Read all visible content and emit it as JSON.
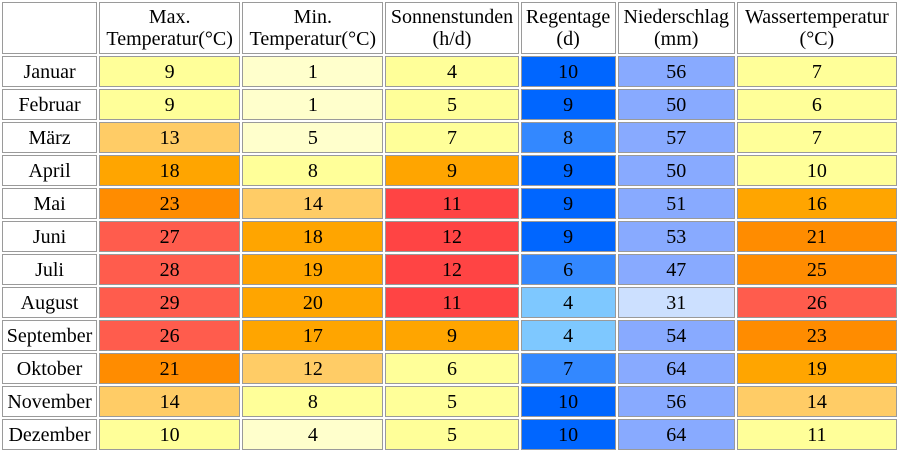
{
  "headers": [
    {
      "line1": "",
      "line2": ""
    },
    {
      "line1": "Max.",
      "line2": "Temperatur(°C)"
    },
    {
      "line1": "Min.",
      "line2": "Temperatur(°C)"
    },
    {
      "line1": "Sonnenstunden",
      "line2": "(h/d)"
    },
    {
      "line1": "Regentage",
      "line2": "(d)"
    },
    {
      "line1": "Niederschlag",
      "line2": "(mm)"
    },
    {
      "line1": "Wassertemperatur",
      "line2": "(°C)"
    }
  ],
  "rows": [
    {
      "month": "Januar",
      "values": [
        9,
        1,
        4,
        10,
        56,
        7
      ]
    },
    {
      "month": "Februar",
      "values": [
        9,
        1,
        5,
        9,
        50,
        6
      ]
    },
    {
      "month": "März",
      "values": [
        13,
        5,
        7,
        8,
        57,
        7
      ]
    },
    {
      "month": "April",
      "values": [
        18,
        8,
        9,
        9,
        50,
        10
      ]
    },
    {
      "month": "Mai",
      "values": [
        23,
        14,
        11,
        9,
        51,
        16
      ]
    },
    {
      "month": "Juni",
      "values": [
        27,
        18,
        12,
        9,
        53,
        21
      ]
    },
    {
      "month": "Juli",
      "values": [
        28,
        19,
        12,
        6,
        47,
        25
      ]
    },
    {
      "month": "August",
      "values": [
        29,
        20,
        11,
        4,
        31,
        26
      ]
    },
    {
      "month": "September",
      "values": [
        26,
        17,
        9,
        4,
        54,
        23
      ]
    },
    {
      "month": "Oktober",
      "values": [
        21,
        12,
        6,
        7,
        64,
        19
      ]
    },
    {
      "month": "November",
      "values": [
        14,
        8,
        5,
        10,
        56,
        14
      ]
    },
    {
      "month": "Dezember",
      "values": [
        10,
        4,
        5,
        10,
        64,
        11
      ]
    }
  ],
  "cell_colors": [
    [
      "#ffff99",
      "#ffffcc",
      "#ffff99",
      "#0066ff",
      "#88aaff",
      "#ffff99"
    ],
    [
      "#ffff99",
      "#ffffcc",
      "#ffff99",
      "#0066ff",
      "#88aaff",
      "#ffff99"
    ],
    [
      "#ffcc66",
      "#ffffcc",
      "#ffff99",
      "#3388ff",
      "#88aaff",
      "#ffff99"
    ],
    [
      "#ffa500",
      "#ffff99",
      "#ffa500",
      "#0066ff",
      "#88aaff",
      "#ffff99"
    ],
    [
      "#ff8c00",
      "#ffcc66",
      "#ff4444",
      "#0066ff",
      "#88aaff",
      "#ffa500"
    ],
    [
      "#ff5c4d",
      "#ffa500",
      "#ff4444",
      "#0066ff",
      "#88aaff",
      "#ff8c00"
    ],
    [
      "#ff5c4d",
      "#ffa500",
      "#ff4444",
      "#3388ff",
      "#88aaff",
      "#ff8c00"
    ],
    [
      "#ff5c4d",
      "#ffa500",
      "#ff4444",
      "#7ec8ff",
      "#cce0ff",
      "#ff5c4d"
    ],
    [
      "#ff5c4d",
      "#ffa500",
      "#ffa500",
      "#7ec8ff",
      "#88aaff",
      "#ff8c00"
    ],
    [
      "#ff8c00",
      "#ffcc66",
      "#ffff99",
      "#3388ff",
      "#88aaff",
      "#ffa500"
    ],
    [
      "#ffcc66",
      "#ffff99",
      "#ffff99",
      "#0066ff",
      "#88aaff",
      "#ffcc66"
    ],
    [
      "#ffff99",
      "#ffffcc",
      "#ffff99",
      "#0066ff",
      "#88aaff",
      "#ffff99"
    ]
  ]
}
